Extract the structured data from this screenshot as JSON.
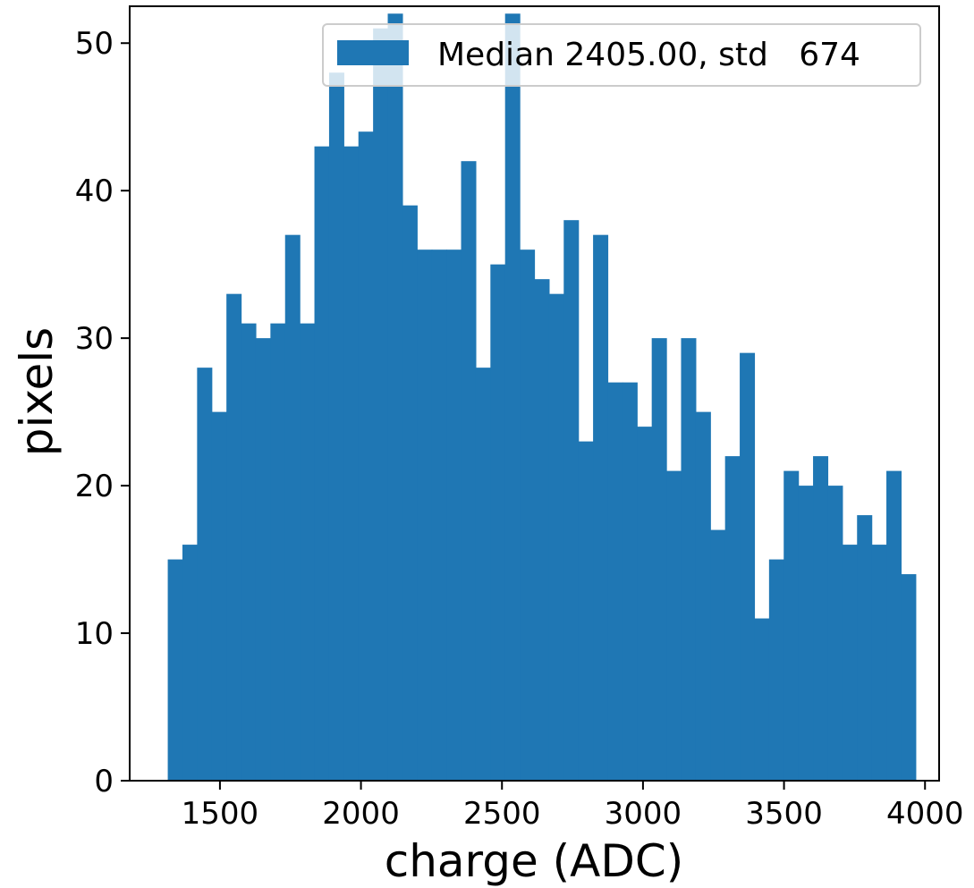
{
  "chart_data": {
    "type": "bar",
    "title": "",
    "xlabel": "charge (ADC)",
    "ylabel": "pixels",
    "xlim": [
      1180,
      4050
    ],
    "ylim": [
      0,
      52.5
    ],
    "x_ticks": [
      1500,
      2000,
      2500,
      3000,
      3500,
      4000
    ],
    "y_ticks": [
      0,
      10,
      20,
      30,
      40,
      50
    ],
    "grid": false,
    "legend_position": "top-right",
    "bar_color": "#1f77b4",
    "bins": {
      "start": 1315,
      "width": 52,
      "counts": [
        15,
        16,
        28,
        25,
        33,
        31,
        30,
        31,
        37,
        31,
        43,
        48,
        43,
        44,
        51,
        52,
        39,
        36,
        36,
        36,
        42,
        28,
        35,
        52,
        36,
        34,
        33,
        38,
        23,
        37,
        27,
        27,
        24,
        30,
        21,
        30,
        25,
        17,
        22,
        29,
        11,
        15,
        21,
        20,
        22,
        20,
        16,
        18,
        16,
        21,
        14
      ]
    },
    "series": [
      {
        "name": "Median 2405.00, std   674",
        "color": "#1f77b4"
      }
    ]
  }
}
